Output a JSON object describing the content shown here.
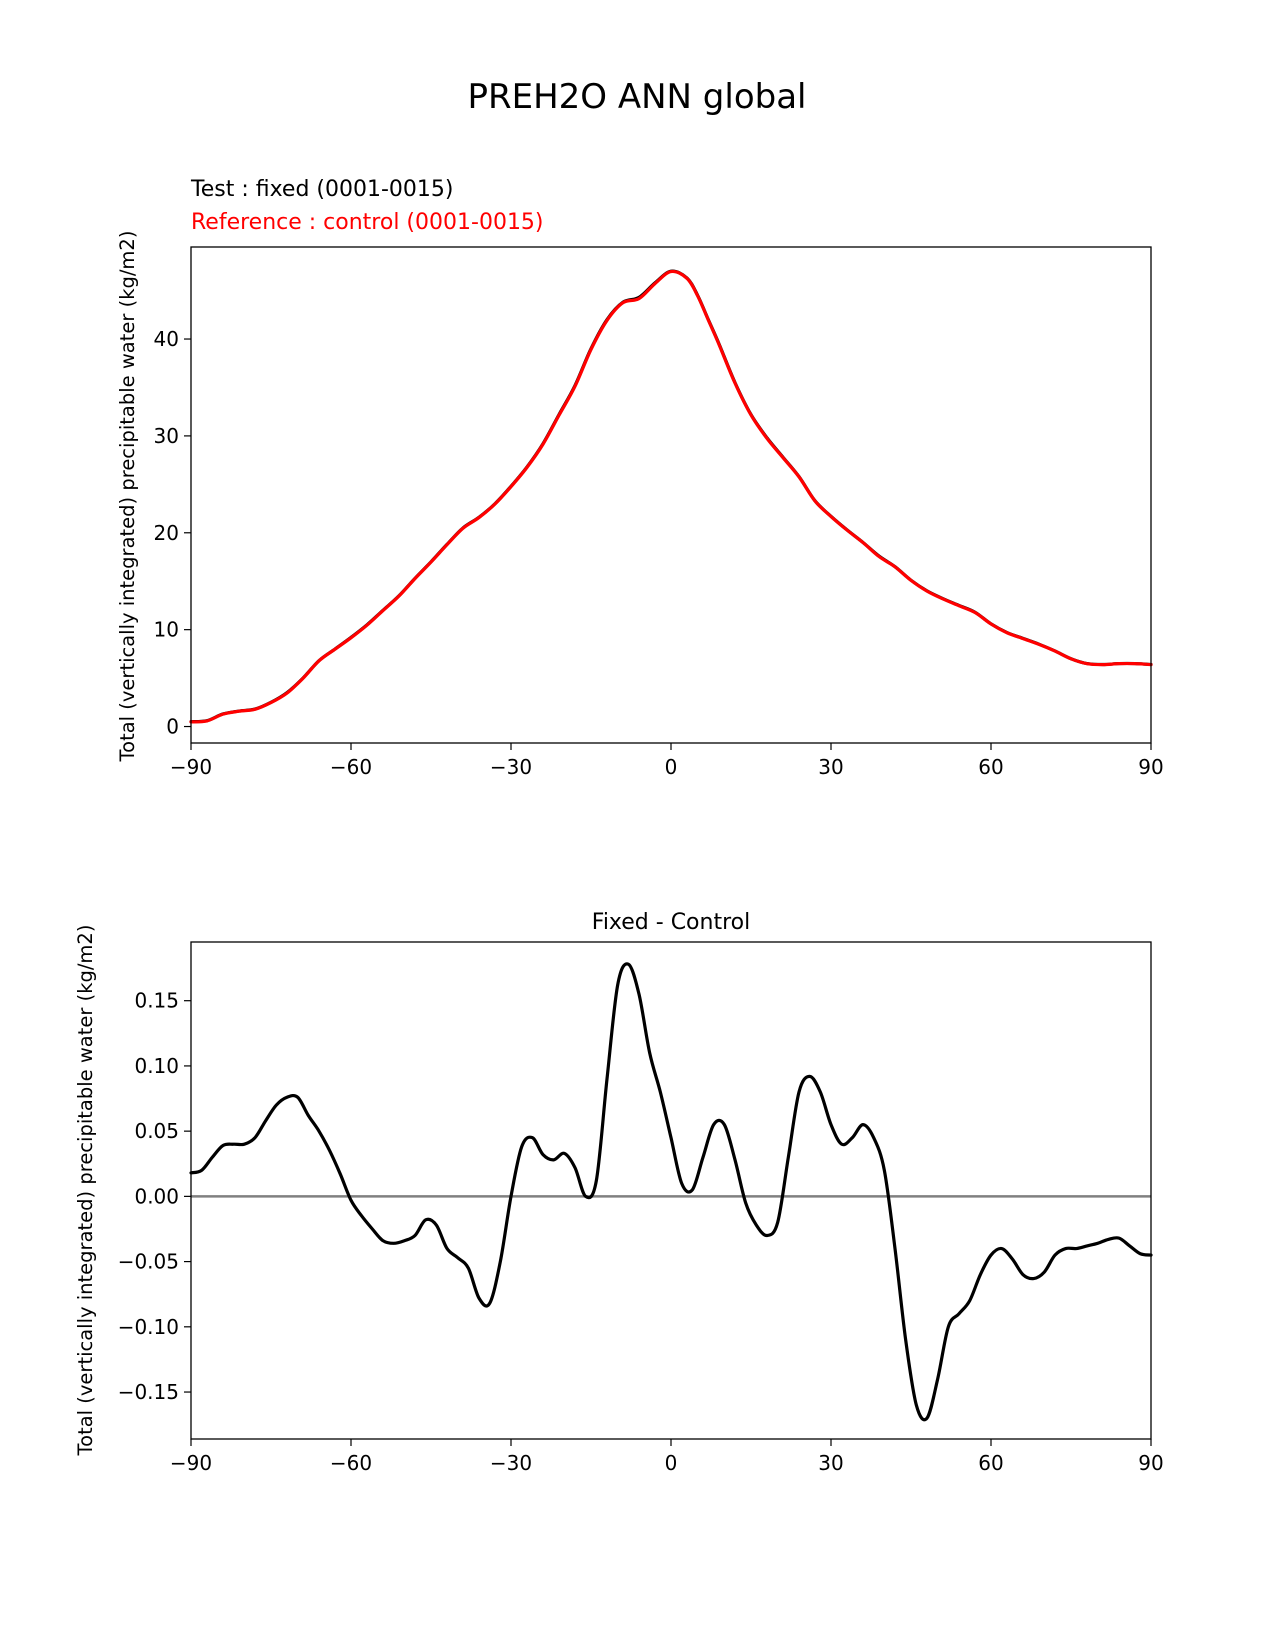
{
  "figure": {
    "title": "PREH2O ANN global"
  },
  "chart_data": [
    {
      "type": "line",
      "name": "top",
      "test_label": "Test : fixed (0001-0015)",
      "reference_label": "Reference : control (0001-0015)",
      "ylabel": "Total (vertically integrated) precipitable water (kg/m2)",
      "xlim": [
        -90,
        90
      ],
      "ylim": [
        -1.7,
        49.5
      ],
      "xticks": [
        -90,
        -60,
        -30,
        0,
        30,
        60,
        90
      ],
      "xtick_labels": [
        "−90",
        "−60",
        "−30",
        "0",
        "30",
        "60",
        "90"
      ],
      "yticks": [
        0,
        10,
        20,
        30,
        40
      ],
      "ytick_labels": [
        "0",
        "10",
        "20",
        "30",
        "40"
      ],
      "colors": {
        "test": "#000000",
        "reference": "#ff0000"
      },
      "series": [
        {
          "role": "test",
          "x": [
            -90,
            -87,
            -84,
            -81,
            -78,
            -75,
            -72,
            -69,
            -66,
            -63,
            -60,
            -57,
            -54,
            -51,
            -48,
            -45,
            -42,
            -39,
            -36,
            -33,
            -30,
            -27,
            -24,
            -21,
            -18,
            -15,
            -12,
            -9,
            -6,
            -3,
            0,
            3,
            5,
            7,
            9,
            12,
            15,
            18,
            21,
            24,
            27,
            30,
            33,
            36,
            39,
            42,
            45,
            48,
            51,
            54,
            57,
            60,
            63,
            66,
            69,
            72,
            75,
            78,
            81,
            84,
            87,
            90
          ],
          "values": [
            0.5,
            0.6,
            1.3,
            1.6,
            1.8,
            2.5,
            3.5,
            5.0,
            6.8,
            8.0,
            9.2,
            10.5,
            12.0,
            13.5,
            15.3,
            17.0,
            18.8,
            20.5,
            21.6,
            23.0,
            24.8,
            26.8,
            29.2,
            32.2,
            35.2,
            39.0,
            42.0,
            43.8,
            44.3,
            45.8,
            47.0,
            46.3,
            44.5,
            42.0,
            39.5,
            35.5,
            32.2,
            29.8,
            27.8,
            25.8,
            23.3,
            21.7,
            20.3,
            19.0,
            17.6,
            16.5,
            15.1,
            14.0,
            13.2,
            12.5,
            11.8,
            10.6,
            9.7,
            9.1,
            8.5,
            7.8,
            7.0,
            6.5,
            6.4,
            6.5,
            6.5,
            6.4
          ]
        },
        {
          "role": "reference",
          "x": [
            -90,
            -87,
            -84,
            -81,
            -78,
            -75,
            -72,
            -69,
            -66,
            -63,
            -60,
            -57,
            -54,
            -51,
            -48,
            -45,
            -42,
            -39,
            -36,
            -33,
            -30,
            -27,
            -24,
            -21,
            -18,
            -15,
            -12,
            -9,
            -6,
            -3,
            0,
            3,
            5,
            7,
            9,
            12,
            15,
            18,
            21,
            24,
            27,
            30,
            33,
            36,
            39,
            42,
            45,
            48,
            51,
            54,
            57,
            60,
            63,
            66,
            69,
            72,
            75,
            78,
            81,
            84,
            87,
            90
          ],
          "values": [
            0.48,
            0.58,
            1.28,
            1.58,
            1.78,
            2.47,
            3.45,
            4.98,
            6.78,
            7.98,
            9.16,
            10.46,
            11.97,
            13.47,
            15.27,
            16.98,
            18.77,
            20.47,
            21.57,
            22.97,
            24.76,
            26.75,
            29.14,
            32.13,
            35.12,
            38.92,
            41.92,
            43.75,
            44.17,
            45.72,
            46.96,
            46.25,
            44.45,
            41.95,
            39.44,
            35.45,
            32.16,
            29.74,
            27.75,
            25.77,
            23.28,
            21.68,
            20.28,
            18.99,
            17.55,
            16.48,
            15.09,
            13.98,
            13.17,
            12.47,
            11.77,
            10.59,
            9.68,
            9.08,
            8.48,
            7.79,
            6.99,
            6.49,
            6.39,
            6.49,
            6.49,
            6.39
          ]
        }
      ]
    },
    {
      "type": "line",
      "name": "bottom",
      "title": "Fixed - Control",
      "ylabel": "Total (vertically integrated) precipitable water (kg/m2)",
      "xlim": [
        -90,
        90
      ],
      "ylim": [
        -0.186,
        0.195
      ],
      "xticks": [
        -90,
        -60,
        -30,
        0,
        30,
        60,
        90
      ],
      "xtick_labels": [
        "−90",
        "−60",
        "−30",
        "0",
        "30",
        "60",
        "90"
      ],
      "yticks": [
        -0.15,
        -0.1,
        -0.05,
        0.0,
        0.05,
        0.1,
        0.15
      ],
      "ytick_labels": [
        "−0.15",
        "−0.10",
        "−0.05",
        "0.00",
        "0.05",
        "0.10",
        "0.15"
      ],
      "zero_line": 0,
      "colors": {
        "difference": "#000000",
        "zero_line": "#808080"
      },
      "series": [
        {
          "role": "difference",
          "x": [
            -90,
            -88,
            -86,
            -84,
            -82,
            -80,
            -78,
            -76,
            -74,
            -72,
            -70,
            -68,
            -66,
            -64,
            -62,
            -60,
            -58,
            -56,
            -54,
            -52,
            -50,
            -48,
            -46,
            -44,
            -42,
            -40,
            -38,
            -36,
            -34,
            -32,
            -30,
            -28,
            -26,
            -24,
            -22,
            -20,
            -18,
            -16,
            -14,
            -12,
            -10,
            -8,
            -6,
            -4,
            -2,
            0,
            2,
            4,
            6,
            8,
            10,
            12,
            14,
            16,
            18,
            20,
            22,
            24,
            26,
            28,
            30,
            32,
            34,
            36,
            38,
            40,
            42,
            44,
            46,
            48,
            50,
            52,
            54,
            56,
            58,
            60,
            62,
            64,
            66,
            68,
            70,
            72,
            74,
            76,
            78,
            80,
            82,
            84,
            86,
            88,
            90
          ],
          "values": [
            0.018,
            0.02,
            0.03,
            0.039,
            0.04,
            0.04,
            0.045,
            0.058,
            0.07,
            0.076,
            0.076,
            0.062,
            0.05,
            0.035,
            0.017,
            -0.003,
            -0.015,
            -0.025,
            -0.034,
            -0.036,
            -0.034,
            -0.03,
            -0.018,
            -0.022,
            -0.04,
            -0.047,
            -0.055,
            -0.078,
            -0.082,
            -0.05,
            0.0,
            0.038,
            0.045,
            0.032,
            0.028,
            0.033,
            0.022,
            0.0,
            0.012,
            0.09,
            0.162,
            0.178,
            0.155,
            0.11,
            0.08,
            0.045,
            0.01,
            0.005,
            0.03,
            0.055,
            0.055,
            0.028,
            -0.005,
            -0.022,
            -0.03,
            -0.02,
            0.03,
            0.08,
            0.092,
            0.08,
            0.055,
            0.04,
            0.045,
            0.055,
            0.045,
            0.02,
            -0.04,
            -0.11,
            -0.16,
            -0.17,
            -0.14,
            -0.1,
            -0.09,
            -0.08,
            -0.06,
            -0.045,
            -0.04,
            -0.048,
            -0.06,
            -0.063,
            -0.058,
            -0.045,
            -0.04,
            -0.04,
            -0.038,
            -0.036,
            -0.033,
            -0.032,
            -0.038,
            -0.044,
            -0.045
          ]
        }
      ]
    }
  ]
}
